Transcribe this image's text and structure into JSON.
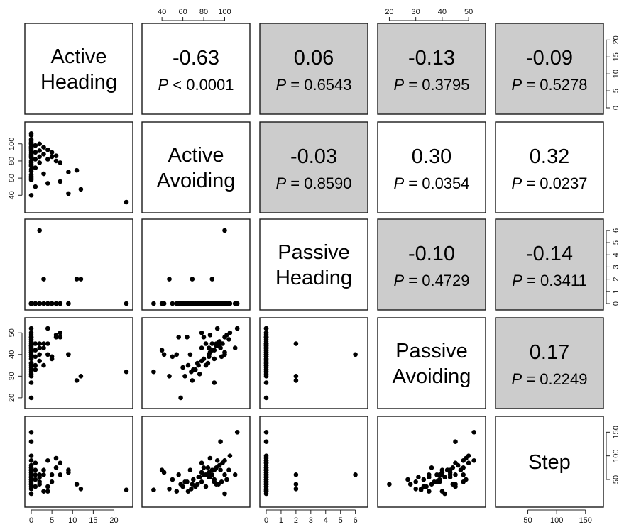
{
  "chart_data": {
    "type": "scatter",
    "variables": [
      {
        "key": "ah",
        "label": [
          "Active",
          "Heading"
        ],
        "range": [
          0,
          23
        ]
      },
      {
        "key": "aa",
        "label": [
          "Active",
          "Avoiding"
        ],
        "range": [
          27,
          118
        ]
      },
      {
        "key": "ph",
        "label": [
          "Passive",
          "Heading"
        ],
        "range": [
          0,
          6.4
        ]
      },
      {
        "key": "pa",
        "label": [
          "Passive",
          "Avoiding"
        ],
        "range": [
          18,
          54
        ]
      },
      {
        "key": "st",
        "label": [
          "Step"
        ],
        "range": [
          5,
          170
        ]
      }
    ],
    "axes": {
      "top": [
        {
          "column": 1,
          "ticks": [
            40,
            60,
            80,
            100
          ]
        },
        {
          "column": 3,
          "ticks": [
            20,
            30,
            40,
            50
          ]
        }
      ],
      "bottom": [
        {
          "column": 0,
          "ticks": [
            0,
            5,
            10,
            15,
            20
          ]
        },
        {
          "column": 2,
          "ticks": [
            0,
            1,
            2,
            3,
            4,
            5,
            6
          ]
        },
        {
          "column": 4,
          "ticks": [
            50,
            100,
            150
          ]
        }
      ],
      "right": [
        {
          "row": 0,
          "ticks": [
            0,
            5,
            10,
            15,
            20
          ]
        },
        {
          "row": 2,
          "ticks": [
            0,
            1,
            2,
            3,
            4,
            5,
            6
          ]
        },
        {
          "row": 4,
          "ticks": [
            50,
            100,
            150
          ]
        }
      ],
      "left": [
        {
          "row": 1,
          "ticks": [
            40,
            60,
            80,
            100
          ]
        },
        {
          "row": 3,
          "ticks": [
            20,
            30,
            40,
            50
          ]
        }
      ]
    },
    "correlations": [
      {
        "row": 0,
        "col": 1,
        "r": "-0.63",
        "p_sym": "<",
        "p": "0.0001",
        "shaded": false
      },
      {
        "row": 0,
        "col": 2,
        "r": "0.06",
        "p_sym": "=",
        "p": "0.6543",
        "shaded": true
      },
      {
        "row": 0,
        "col": 3,
        "r": "-0.13",
        "p_sym": "=",
        "p": "0.3795",
        "shaded": true
      },
      {
        "row": 0,
        "col": 4,
        "r": "-0.09",
        "p_sym": "=",
        "p": "0.5278",
        "shaded": true
      },
      {
        "row": 1,
        "col": 2,
        "r": "-0.03",
        "p_sym": "=",
        "p": "0.8590",
        "shaded": true
      },
      {
        "row": 1,
        "col": 3,
        "r": "0.30",
        "p_sym": "=",
        "p": "0.0354",
        "shaded": false
      },
      {
        "row": 1,
        "col": 4,
        "r": "0.32",
        "p_sym": "=",
        "p": "0.0237",
        "shaded": false
      },
      {
        "row": 2,
        "col": 3,
        "r": "-0.10",
        "p_sym": "=",
        "p": "0.4729",
        "shaded": true
      },
      {
        "row": 2,
        "col": 4,
        "r": "-0.14",
        "p_sym": "=",
        "p": "0.3411",
        "shaded": true
      },
      {
        "row": 3,
        "col": 4,
        "r": "0.17",
        "p_sym": "=",
        "p": "0.2249",
        "shaded": true
      }
    ],
    "p_prefix": "P",
    "observations": [
      {
        "ah": 0,
        "aa": 112,
        "ph": 0,
        "pa": 52,
        "st": 150
      },
      {
        "ah": 0,
        "aa": 105,
        "ph": 0,
        "pa": 50,
        "st": 100
      },
      {
        "ah": 0,
        "aa": 100,
        "ph": 0,
        "pa": 48,
        "st": 90
      },
      {
        "ah": 0,
        "aa": 95,
        "ph": 0,
        "pa": 46,
        "st": 80
      },
      {
        "ah": 0,
        "aa": 92,
        "ph": 0,
        "pa": 44,
        "st": 75
      },
      {
        "ah": 0,
        "aa": 88,
        "ph": 0,
        "pa": 42,
        "st": 70
      },
      {
        "ah": 0,
        "aa": 85,
        "ph": 0,
        "pa": 40,
        "st": 65
      },
      {
        "ah": 0,
        "aa": 80,
        "ph": 0,
        "pa": 38,
        "st": 60
      },
      {
        "ah": 0,
        "aa": 75,
        "ph": 0,
        "pa": 35,
        "st": 55
      },
      {
        "ah": 0,
        "aa": 70,
        "ph": 0,
        "pa": 33,
        "st": 50
      },
      {
        "ah": 0,
        "aa": 62,
        "ph": 0,
        "pa": 30,
        "st": 45
      },
      {
        "ah": 0,
        "aa": 58,
        "ph": 0,
        "pa": 20,
        "st": 40
      },
      {
        "ah": 1,
        "aa": 98,
        "ph": 0,
        "pa": 45,
        "st": 85
      },
      {
        "ah": 1,
        "aa": 90,
        "ph": 0,
        "pa": 42,
        "st": 70
      },
      {
        "ah": 1,
        "aa": 82,
        "ph": 0,
        "pa": 35,
        "st": 60
      },
      {
        "ah": 1,
        "aa": 72,
        "ph": 0,
        "pa": 33,
        "st": 35
      },
      {
        "ah": 1,
        "aa": 50,
        "ph": 0,
        "pa": 39,
        "st": 50
      },
      {
        "ah": 2,
        "aa": 100,
        "ph": 6,
        "pa": 40,
        "st": 60
      },
      {
        "ah": 2,
        "aa": 92,
        "ph": 0,
        "pa": 45,
        "st": 40
      },
      {
        "ah": 2,
        "aa": 85,
        "ph": 0,
        "pa": 43,
        "st": 55
      },
      {
        "ah": 2,
        "aa": 78,
        "ph": 0,
        "pa": 37,
        "st": 45
      },
      {
        "ah": 3,
        "aa": 96,
        "ph": 0,
        "pa": 43,
        "st": 70
      },
      {
        "ah": 3,
        "aa": 88,
        "ph": 2,
        "pa": 45,
        "st": 60
      },
      {
        "ah": 3,
        "aa": 65,
        "ph": 0,
        "pa": 35,
        "st": 25
      },
      {
        "ah": 4,
        "aa": 93,
        "ph": 0,
        "pa": 52,
        "st": 90
      },
      {
        "ah": 4,
        "aa": 82,
        "ph": 0,
        "pa": 45,
        "st": 35
      },
      {
        "ah": 4,
        "aa": 54,
        "ph": 0,
        "pa": 40,
        "st": 25
      },
      {
        "ah": 5,
        "aa": 85,
        "ph": 0,
        "pa": 39,
        "st": 60
      },
      {
        "ah": 5,
        "aa": 90,
        "ph": 0,
        "pa": 38,
        "st": 45
      },
      {
        "ah": 6,
        "aa": 86,
        "ph": 0,
        "pa": 49,
        "st": 95
      },
      {
        "ah": 6,
        "aa": 80,
        "ph": 0,
        "pa": 48,
        "st": 75
      },
      {
        "ah": 7,
        "aa": 78,
        "ph": 0,
        "pa": 50,
        "st": 85
      },
      {
        "ah": 7,
        "aa": 56,
        "ph": 0,
        "pa": 48,
        "st": 60
      },
      {
        "ah": 9,
        "aa": 67,
        "ph": 0,
        "pa": 40,
        "st": 70
      },
      {
        "ah": 9,
        "aa": 42,
        "ph": 0,
        "pa": 40,
        "st": 65
      },
      {
        "ah": 11,
        "aa": 69,
        "ph": 2,
        "pa": 28,
        "st": 40
      },
      {
        "ah": 12,
        "aa": 47,
        "ph": 2,
        "pa": 30,
        "st": 30
      },
      {
        "ah": 23,
        "aa": 32,
        "ph": 0,
        "pa": 32,
        "st": 28
      },
      {
        "ah": 0,
        "aa": 64,
        "ph": 0,
        "pa": 48,
        "st": 45
      },
      {
        "ah": 0,
        "aa": 96,
        "ph": 0,
        "pa": 45,
        "st": 130
      },
      {
        "ah": 0,
        "aa": 86,
        "ph": 0,
        "pa": 41,
        "st": 55
      },
      {
        "ah": 0,
        "aa": 78,
        "ph": 0,
        "pa": 43,
        "st": 65
      },
      {
        "ah": 0,
        "aa": 74,
        "ph": 0,
        "pa": 36,
        "st": 40
      },
      {
        "ah": 0,
        "aa": 68,
        "ph": 0,
        "pa": 32,
        "st": 30
      },
      {
        "ah": 0,
        "aa": 90,
        "ph": 0,
        "pa": 27,
        "st": 50
      },
      {
        "ah": 0,
        "aa": 104,
        "ph": 0,
        "pa": 47,
        "st": 70
      },
      {
        "ah": 0,
        "aa": 110,
        "ph": 0,
        "pa": 43,
        "st": 60
      },
      {
        "ah": 0,
        "aa": 100,
        "ph": 0,
        "pa": 41,
        "st": 20
      },
      {
        "ah": 0,
        "aa": 97,
        "ph": 0,
        "pa": 39,
        "st": 45
      },
      {
        "ah": 0,
        "aa": 84,
        "ph": 0,
        "pa": 36,
        "st": 75
      },
      {
        "ah": 0,
        "aa": 76,
        "ph": 0,
        "pa": 31,
        "st": 55
      },
      {
        "ah": 0,
        "aa": 60,
        "ph": 0,
        "pa": 34,
        "st": 35
      },
      {
        "ah": 0,
        "aa": 102,
        "ph": 0,
        "pa": 49,
        "st": 50
      },
      {
        "ah": 0,
        "aa": 40,
        "ph": 0,
        "pa": 42,
        "st": 70
      },
      {
        "ah": 0,
        "aa": 94,
        "ph": 0,
        "pa": 44,
        "st": 40
      }
    ]
  }
}
